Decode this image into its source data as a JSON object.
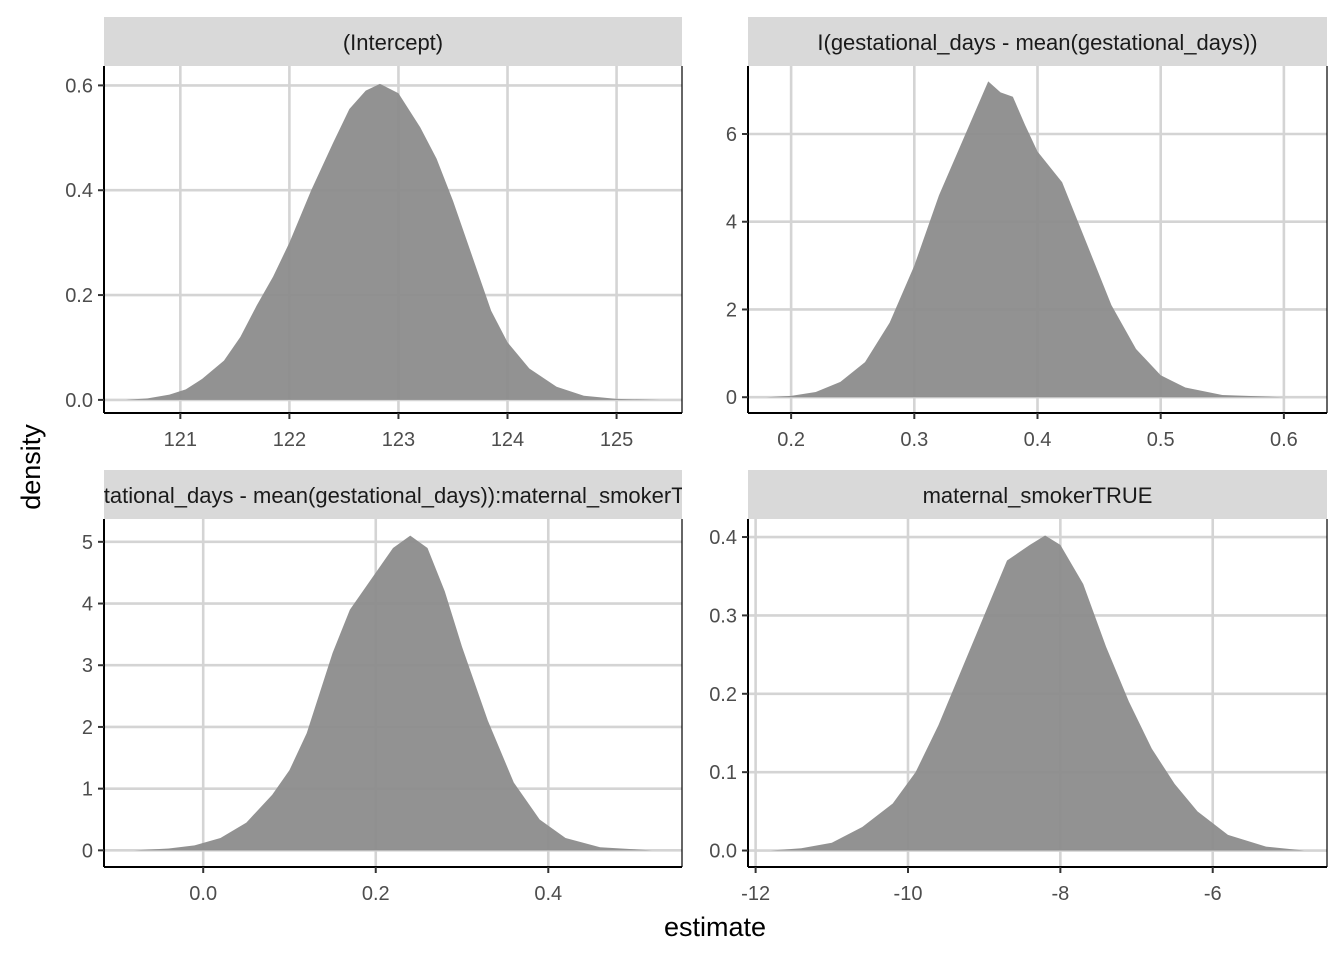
{
  "figure": {
    "xlabel": "estimate",
    "ylabel": "density",
    "colors": {
      "fill": "#8c8c8c",
      "grid": "#d4d4d4",
      "strip": "#d9d9d9",
      "axis": "#000000",
      "tick_text": "#4d4d4d"
    }
  },
  "chart_data": [
    {
      "type": "area",
      "title": "(Intercept)",
      "xlim": [
        120.3,
        125.6
      ],
      "ylim": [
        -0.025,
        0.637
      ],
      "xticks": [
        121,
        122,
        123,
        124,
        125
      ],
      "xtick_labels": [
        "121",
        "122",
        "123",
        "124",
        "125"
      ],
      "yticks": [
        0,
        0.2,
        0.4,
        0.6
      ],
      "ytick_labels": [
        "0.0",
        "0.2",
        "0.4",
        "0.6"
      ],
      "x": [
        120.5,
        120.7,
        120.9,
        121.05,
        121.2,
        121.4,
        121.55,
        121.7,
        121.85,
        122.0,
        122.2,
        122.4,
        122.55,
        122.7,
        122.83,
        123.0,
        123.2,
        123.35,
        123.5,
        123.7,
        123.85,
        124.0,
        124.2,
        124.45,
        124.7,
        125.0,
        125.4
      ],
      "y": [
        0.0,
        0.003,
        0.01,
        0.02,
        0.04,
        0.075,
        0.12,
        0.18,
        0.235,
        0.3,
        0.4,
        0.49,
        0.555,
        0.59,
        0.603,
        0.585,
        0.52,
        0.46,
        0.38,
        0.26,
        0.17,
        0.11,
        0.06,
        0.025,
        0.008,
        0.002,
        0.0
      ]
    },
    {
      "type": "area",
      "title": "I(gestational_days - mean(gestational_days))",
      "xlim": [
        0.165,
        0.635
      ],
      "ylim": [
        -0.36,
        7.55
      ],
      "xticks": [
        0.2,
        0.3,
        0.4,
        0.5,
        0.6
      ],
      "xtick_labels": [
        "0.2",
        "0.3",
        "0.4",
        "0.5",
        "0.6"
      ],
      "yticks": [
        0,
        2,
        4,
        6
      ],
      "ytick_labels": [
        "0",
        "2",
        "4",
        "6"
      ],
      "x": [
        0.18,
        0.2,
        0.22,
        0.24,
        0.26,
        0.28,
        0.3,
        0.32,
        0.34,
        0.36,
        0.37,
        0.38,
        0.39,
        0.4,
        0.42,
        0.44,
        0.46,
        0.48,
        0.5,
        0.52,
        0.55,
        0.6
      ],
      "y": [
        0.0,
        0.03,
        0.12,
        0.35,
        0.8,
        1.7,
        3.0,
        4.6,
        5.9,
        7.2,
        6.95,
        6.85,
        6.2,
        5.6,
        4.9,
        3.5,
        2.1,
        1.1,
        0.5,
        0.22,
        0.05,
        0.0
      ]
    },
    {
      "type": "area",
      "title": "I(gestational_days - mean(gestational_days)):maternal_smokerTRUE",
      "xlim": [
        -0.115,
        0.555
      ],
      "ylim": [
        -0.27,
        5.37
      ],
      "xticks": [
        0.0,
        0.2,
        0.4
      ],
      "xtick_labels": [
        "0.0",
        "0.2",
        "0.4"
      ],
      "yticks": [
        0,
        1,
        2,
        3,
        4,
        5
      ],
      "ytick_labels": [
        "0",
        "1",
        "2",
        "3",
        "4",
        "5"
      ],
      "x": [
        -0.08,
        -0.04,
        -0.01,
        0.02,
        0.05,
        0.08,
        0.1,
        0.12,
        0.15,
        0.17,
        0.2,
        0.22,
        0.24,
        0.26,
        0.28,
        0.3,
        0.33,
        0.36,
        0.39,
        0.42,
        0.46,
        0.52
      ],
      "y": [
        0.0,
        0.03,
        0.08,
        0.2,
        0.45,
        0.9,
        1.3,
        1.9,
        3.2,
        3.9,
        4.5,
        4.9,
        5.1,
        4.9,
        4.2,
        3.3,
        2.1,
        1.1,
        0.5,
        0.2,
        0.05,
        0.0
      ]
    },
    {
      "type": "area",
      "title": "maternal_smokerTRUE",
      "xlim": [
        -12.1,
        -4.5
      ],
      "ylim": [
        -0.021,
        0.423
      ],
      "xticks": [
        -12,
        -10,
        -8,
        -6
      ],
      "xtick_labels": [
        "-12",
        "-10",
        "-8",
        "-6"
      ],
      "yticks": [
        0,
        0.1,
        0.2,
        0.3,
        0.4
      ],
      "ytick_labels": [
        "0.0",
        "0.1",
        "0.2",
        "0.3",
        "0.4"
      ],
      "x": [
        -11.8,
        -11.4,
        -11.0,
        -10.6,
        -10.2,
        -9.9,
        -9.6,
        -9.3,
        -9.0,
        -8.7,
        -8.4,
        -8.2,
        -8.0,
        -7.7,
        -7.4,
        -7.1,
        -6.8,
        -6.5,
        -6.2,
        -5.8,
        -5.3,
        -4.8
      ],
      "y": [
        0.0,
        0.003,
        0.01,
        0.03,
        0.06,
        0.1,
        0.16,
        0.23,
        0.3,
        0.37,
        0.39,
        0.402,
        0.39,
        0.34,
        0.26,
        0.19,
        0.13,
        0.085,
        0.05,
        0.02,
        0.005,
        0.0
      ]
    }
  ]
}
